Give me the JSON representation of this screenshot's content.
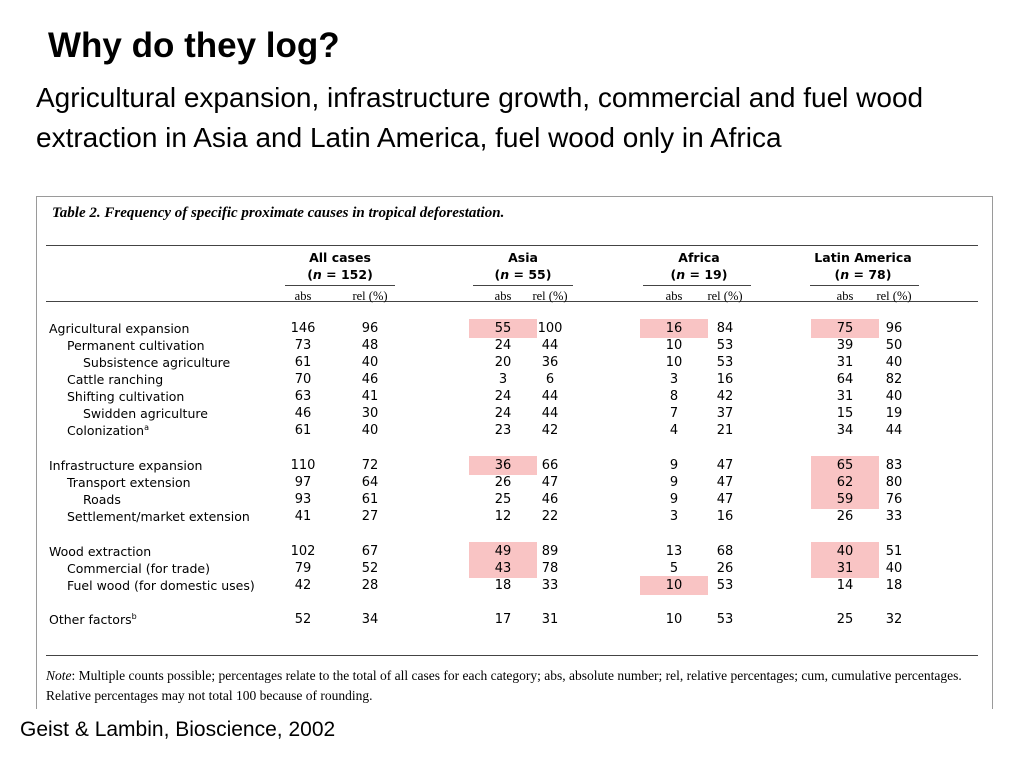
{
  "title": "Why do they log?",
  "subtitle": "Agricultural expansion, infrastructure growth, commercial and fuel wood extraction in Asia and Latin America, fuel wood only in Africa",
  "citation": "Geist & Lambin, Bioscience, 2002",
  "highlight_color": "#f9c4c4",
  "table": {
    "caption": "Table 2. Frequency of specific proximate causes in tropical deforestation.",
    "groups": [
      {
        "name": "All cases",
        "n_prefix": "(",
        "n_var": "n",
        "n_value": " = 152)",
        "abs": "abs",
        "rel": "rel (%)"
      },
      {
        "name": "Asia",
        "n_prefix": "(",
        "n_var": "n",
        "n_value": " = 55)",
        "abs": "abs",
        "rel": "rel (%)"
      },
      {
        "name": "Africa",
        "n_prefix": "(",
        "n_var": "n",
        "n_value": " = 19)",
        "abs": "abs",
        "rel": "rel (%)"
      },
      {
        "name": "Latin America",
        "n_prefix": "(",
        "n_var": "n",
        "n_value": " = 78)",
        "abs": "abs",
        "rel": "rel (%)"
      }
    ],
    "rows": [
      {
        "label": "Agricultural expansion",
        "sup": "",
        "indent": 0,
        "values": [
          "146",
          "96",
          "55",
          "100",
          "16",
          "84",
          "75",
          "96"
        ],
        "highlight": [
          false,
          false,
          true,
          false,
          true,
          false,
          true,
          false
        ]
      },
      {
        "label": "Permanent cultivation",
        "sup": "",
        "indent": 1,
        "values": [
          "73",
          "48",
          "24",
          "44",
          "10",
          "53",
          "39",
          "50"
        ],
        "highlight": [
          false,
          false,
          false,
          false,
          false,
          false,
          false,
          false
        ]
      },
      {
        "label": "Subsistence agriculture",
        "sup": "",
        "indent": 2,
        "values": [
          "61",
          "40",
          "20",
          "36",
          "10",
          "53",
          "31",
          "40"
        ],
        "highlight": [
          false,
          false,
          false,
          false,
          false,
          false,
          false,
          false
        ]
      },
      {
        "label": "Cattle ranching",
        "sup": "",
        "indent": 1,
        "values": [
          "70",
          "46",
          "3",
          "6",
          "3",
          "16",
          "64",
          "82"
        ],
        "highlight": [
          false,
          false,
          false,
          false,
          false,
          false,
          false,
          false
        ]
      },
      {
        "label": "Shifting cultivation",
        "sup": "",
        "indent": 1,
        "values": [
          "63",
          "41",
          "24",
          "44",
          "8",
          "42",
          "31",
          "40"
        ],
        "highlight": [
          false,
          false,
          false,
          false,
          false,
          false,
          false,
          false
        ]
      },
      {
        "label": "Swidden agriculture",
        "sup": "",
        "indent": 2,
        "values": [
          "46",
          "30",
          "24",
          "44",
          "7",
          "37",
          "15",
          "19"
        ],
        "highlight": [
          false,
          false,
          false,
          false,
          false,
          false,
          false,
          false
        ]
      },
      {
        "label": "Colonization",
        "sup": "a",
        "indent": 1,
        "values": [
          "61",
          "40",
          "23",
          "42",
          "4",
          "21",
          "34",
          "44"
        ],
        "highlight": [
          false,
          false,
          false,
          false,
          false,
          false,
          false,
          false
        ]
      },
      {
        "label": "Infrastructure expansion",
        "sup": "",
        "indent": 0,
        "values": [
          "110",
          "72",
          "36",
          "66",
          "9",
          "47",
          "65",
          "83"
        ],
        "highlight": [
          false,
          false,
          true,
          false,
          false,
          false,
          true,
          false
        ]
      },
      {
        "label": "Transport extension",
        "sup": "",
        "indent": 1,
        "values": [
          "97",
          "64",
          "26",
          "47",
          "9",
          "47",
          "62",
          "80"
        ],
        "highlight": [
          false,
          false,
          false,
          false,
          false,
          false,
          true,
          false
        ]
      },
      {
        "label": "Roads",
        "sup": "",
        "indent": 2,
        "values": [
          "93",
          "61",
          "25",
          "46",
          "9",
          "47",
          "59",
          "76"
        ],
        "highlight": [
          false,
          false,
          false,
          false,
          false,
          false,
          true,
          false
        ]
      },
      {
        "label": "Settlement/market extension",
        "sup": "",
        "indent": 1,
        "values": [
          "41",
          "27",
          "12",
          "22",
          "3",
          "16",
          "26",
          "33"
        ],
        "highlight": [
          false,
          false,
          false,
          false,
          false,
          false,
          false,
          false
        ]
      },
      {
        "label": "Wood extraction",
        "sup": "",
        "indent": 0,
        "values": [
          "102",
          "67",
          "49",
          "89",
          "13",
          "68",
          "40",
          "51"
        ],
        "highlight": [
          false,
          false,
          true,
          false,
          false,
          false,
          true,
          false
        ]
      },
      {
        "label": "Commercial (for trade)",
        "sup": "",
        "indent": 1,
        "values": [
          "79",
          "52",
          "43",
          "78",
          "5",
          "26",
          "31",
          "40"
        ],
        "highlight": [
          false,
          false,
          true,
          false,
          false,
          false,
          true,
          false
        ]
      },
      {
        "label": "Fuel wood (for domestic uses)",
        "sup": "",
        "indent": 1,
        "values": [
          "42",
          "28",
          "18",
          "33",
          "10",
          "53",
          "14",
          "18"
        ],
        "highlight": [
          false,
          false,
          false,
          false,
          true,
          false,
          false,
          false
        ]
      },
      {
        "label": "Other factors",
        "sup": "b",
        "indent": 0,
        "values": [
          "52",
          "34",
          "17",
          "31",
          "10",
          "53",
          "25",
          "32"
        ],
        "highlight": [
          false,
          false,
          false,
          false,
          false,
          false,
          false,
          false
        ]
      }
    ],
    "note_label": "Note",
    "note_text": ": Multiple counts possible; percentages relate to the total of all cases for each category; abs, absolute number; rel, relative percentages; cum, cumulative percentages. Relative percentages may not total 100 because of rounding."
  }
}
